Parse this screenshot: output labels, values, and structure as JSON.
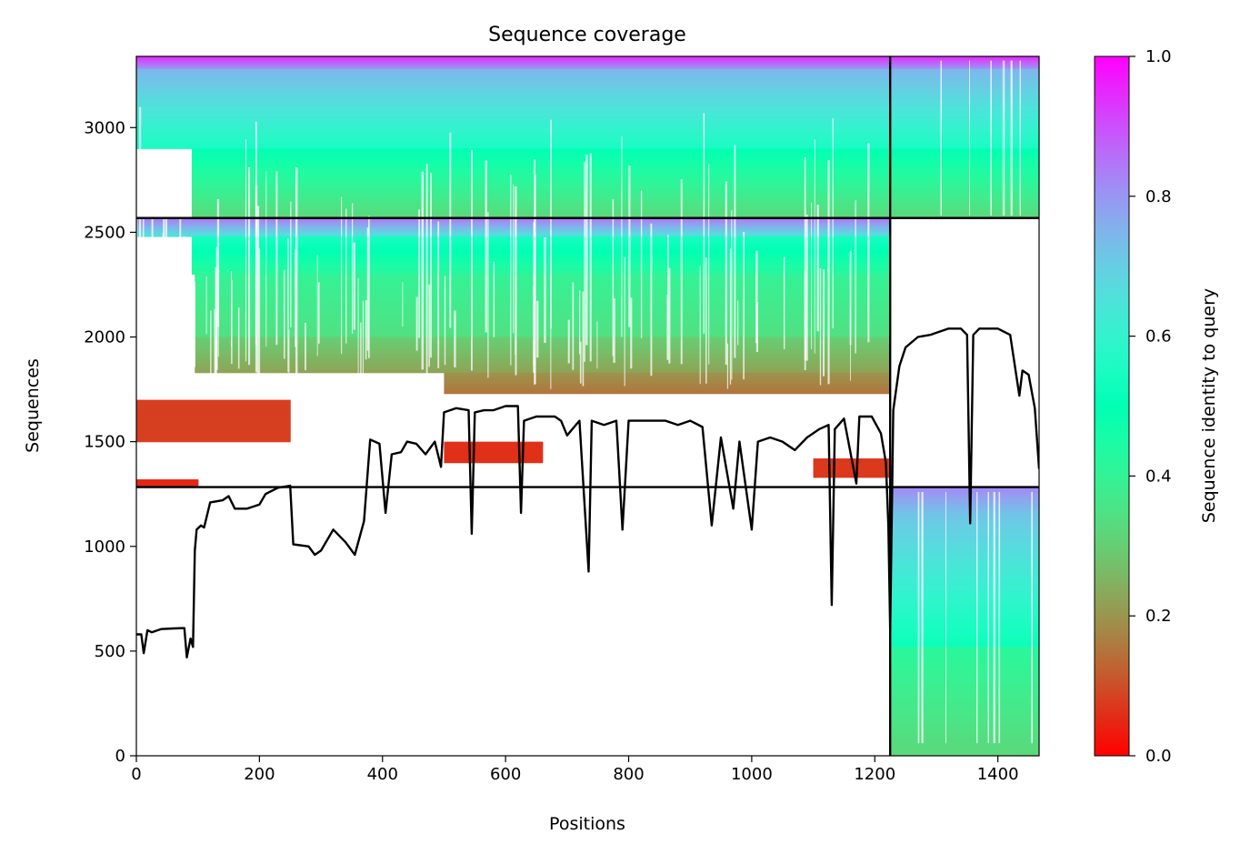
{
  "chart_data": {
    "type": "heatmap",
    "title": "Sequence coverage",
    "xlabel": "Positions",
    "ylabel": "Sequences",
    "xlim": [
      0,
      1467
    ],
    "ylim": [
      0,
      3340
    ],
    "x_ticks": [
      "0",
      "200",
      "400",
      "600",
      "800",
      "1000",
      "1200",
      "1400"
    ],
    "x_tick_values": [
      0,
      200,
      400,
      600,
      800,
      1000,
      1200,
      1400
    ],
    "y_ticks": [
      "0",
      "500",
      "1000",
      "1500",
      "2000",
      "2500",
      "3000"
    ],
    "y_tick_values": [
      0,
      500,
      1000,
      1500,
      2000,
      2500,
      3000
    ],
    "colorbar": {
      "label": "Sequence identity to query",
      "colormap": "rainbow_r",
      "range": [
        0,
        1
      ],
      "ticks": [
        "0.0",
        "0.2",
        "0.4",
        "0.6",
        "0.8",
        "1.0"
      ],
      "tick_values": [
        0,
        0.2,
        0.4,
        0.6,
        0.8,
        1.0
      ]
    },
    "boundaries": {
      "vertical_x": 1225,
      "horizontal_y": [
        1283,
        2568
      ]
    },
    "blocks": [
      {
        "name": "chain-1",
        "x_range": [
          0,
          1225
        ],
        "rows": [
          1283,
          2568
        ],
        "bands": [
          {
            "y0": 2480,
            "y1": 2568,
            "x0": 0,
            "x1": 1225,
            "identity_top": 0.85,
            "identity_bottom": 0.65
          },
          {
            "y0": 2300,
            "y1": 2480,
            "x0": 90,
            "x1": 1225,
            "identity_top": 0.55,
            "identity_bottom": 0.42
          },
          {
            "y0": 2000,
            "y1": 2300,
            "x0": 95,
            "x1": 1225,
            "identity_top": 0.4,
            "identity_bottom": 0.34
          },
          {
            "y0": 1830,
            "y1": 2000,
            "x0": 95,
            "x1": 1225,
            "identity_top": 0.3,
            "identity_bottom": 0.22
          },
          {
            "y0": 1730,
            "y1": 1830,
            "x0": 500,
            "x1": 1225,
            "identity_top": 0.2,
            "identity_bottom": 0.15
          },
          {
            "y0": 1500,
            "y1": 1700,
            "x0": 0,
            "x1": 250,
            "identity_top": 0.08,
            "identity_bottom": 0.08
          },
          {
            "y0": 1400,
            "y1": 1500,
            "x0": 500,
            "x1": 660,
            "identity_top": 0.06,
            "identity_bottom": 0.06
          },
          {
            "y0": 1330,
            "y1": 1420,
            "x0": 1100,
            "x1": 1225,
            "identity_top": 0.07,
            "identity_bottom": 0.07
          },
          {
            "y0": 1290,
            "y1": 1320,
            "x0": 0,
            "x1": 100,
            "identity_top": 0.05,
            "identity_bottom": 0.05
          }
        ]
      },
      {
        "name": "chain-2",
        "x_range": [
          1225,
          1467
        ],
        "rows": [
          0,
          1283
        ],
        "bands": [
          {
            "y0": 1150,
            "y1": 1283,
            "x0": 1225,
            "x1": 1467,
            "identity_top": 0.82,
            "identity_bottom": 0.72
          },
          {
            "y0": 520,
            "y1": 1150,
            "x0": 1225,
            "x1": 1467,
            "identity_top": 0.72,
            "identity_bottom": 0.52
          },
          {
            "y0": 0,
            "y1": 520,
            "x0": 1225,
            "x1": 1467,
            "identity_top": 0.42,
            "identity_bottom": 0.32
          }
        ]
      },
      {
        "name": "paired",
        "x_range": [
          0,
          1467
        ],
        "rows": [
          2568,
          3340
        ],
        "bands": [
          {
            "y0": 3280,
            "y1": 3340,
            "x0": 0,
            "x1": 1467,
            "identity_top": 0.95,
            "identity_bottom": 0.8
          },
          {
            "y0": 2900,
            "y1": 3280,
            "x0": 0,
            "x1": 1467,
            "identity_top": 0.75,
            "identity_bottom": 0.55
          },
          {
            "y0": 2568,
            "y1": 2900,
            "x0": 90,
            "x1": 1467,
            "identity_top": 0.5,
            "identity_bottom": 0.32
          }
        ]
      }
    ],
    "coverage_line": {
      "name": "coverage",
      "points": [
        [
          0,
          580
        ],
        [
          8,
          580
        ],
        [
          12,
          490
        ],
        [
          18,
          600
        ],
        [
          25,
          590
        ],
        [
          40,
          605
        ],
        [
          60,
          608
        ],
        [
          78,
          610
        ],
        [
          82,
          470
        ],
        [
          88,
          560
        ],
        [
          92,
          520
        ],
        [
          95,
          980
        ],
        [
          98,
          1080
        ],
        [
          105,
          1100
        ],
        [
          110,
          1090
        ],
        [
          120,
          1210
        ],
        [
          140,
          1220
        ],
        [
          150,
          1240
        ],
        [
          160,
          1180
        ],
        [
          180,
          1180
        ],
        [
          200,
          1200
        ],
        [
          210,
          1250
        ],
        [
          230,
          1280
        ],
        [
          250,
          1290
        ],
        [
          255,
          1010
        ],
        [
          280,
          1000
        ],
        [
          290,
          960
        ],
        [
          300,
          980
        ],
        [
          320,
          1080
        ],
        [
          340,
          1020
        ],
        [
          355,
          960
        ],
        [
          370,
          1120
        ],
        [
          380,
          1510
        ],
        [
          395,
          1490
        ],
        [
          405,
          1160
        ],
        [
          415,
          1440
        ],
        [
          430,
          1450
        ],
        [
          440,
          1500
        ],
        [
          455,
          1490
        ],
        [
          470,
          1440
        ],
        [
          485,
          1500
        ],
        [
          495,
          1380
        ],
        [
          500,
          1640
        ],
        [
          520,
          1660
        ],
        [
          540,
          1650
        ],
        [
          545,
          1060
        ],
        [
          550,
          1640
        ],
        [
          565,
          1650
        ],
        [
          580,
          1650
        ],
        [
          600,
          1670
        ],
        [
          620,
          1670
        ],
        [
          625,
          1160
        ],
        [
          630,
          1600
        ],
        [
          650,
          1620
        ],
        [
          680,
          1620
        ],
        [
          690,
          1600
        ],
        [
          700,
          1530
        ],
        [
          720,
          1600
        ],
        [
          735,
          880
        ],
        [
          740,
          1600
        ],
        [
          760,
          1580
        ],
        [
          780,
          1600
        ],
        [
          790,
          1080
        ],
        [
          800,
          1600
        ],
        [
          830,
          1600
        ],
        [
          860,
          1600
        ],
        [
          880,
          1580
        ],
        [
          900,
          1600
        ],
        [
          920,
          1570
        ],
        [
          935,
          1100
        ],
        [
          950,
          1520
        ],
        [
          970,
          1180
        ],
        [
          980,
          1500
        ],
        [
          1000,
          1080
        ],
        [
          1010,
          1500
        ],
        [
          1030,
          1520
        ],
        [
          1050,
          1500
        ],
        [
          1070,
          1460
        ],
        [
          1090,
          1520
        ],
        [
          1110,
          1560
        ],
        [
          1125,
          1580
        ],
        [
          1130,
          720
        ],
        [
          1135,
          1560
        ],
        [
          1150,
          1610
        ],
        [
          1170,
          1300
        ],
        [
          1175,
          1620
        ],
        [
          1195,
          1620
        ],
        [
          1210,
          1540
        ],
        [
          1218,
          1400
        ],
        [
          1222,
          1100
        ],
        [
          1225,
          600
        ],
        [
          1230,
          1650
        ],
        [
          1240,
          1860
        ],
        [
          1250,
          1950
        ],
        [
          1270,
          2000
        ],
        [
          1290,
          2010
        ],
        [
          1300,
          2020
        ],
        [
          1320,
          2040
        ],
        [
          1340,
          2040
        ],
        [
          1350,
          2010
        ],
        [
          1355,
          1110
        ],
        [
          1360,
          2010
        ],
        [
          1370,
          2040
        ],
        [
          1400,
          2040
        ],
        [
          1420,
          2010
        ],
        [
          1435,
          1720
        ],
        [
          1440,
          1840
        ],
        [
          1450,
          1820
        ],
        [
          1460,
          1660
        ],
        [
          1467,
          1370
        ]
      ]
    }
  }
}
